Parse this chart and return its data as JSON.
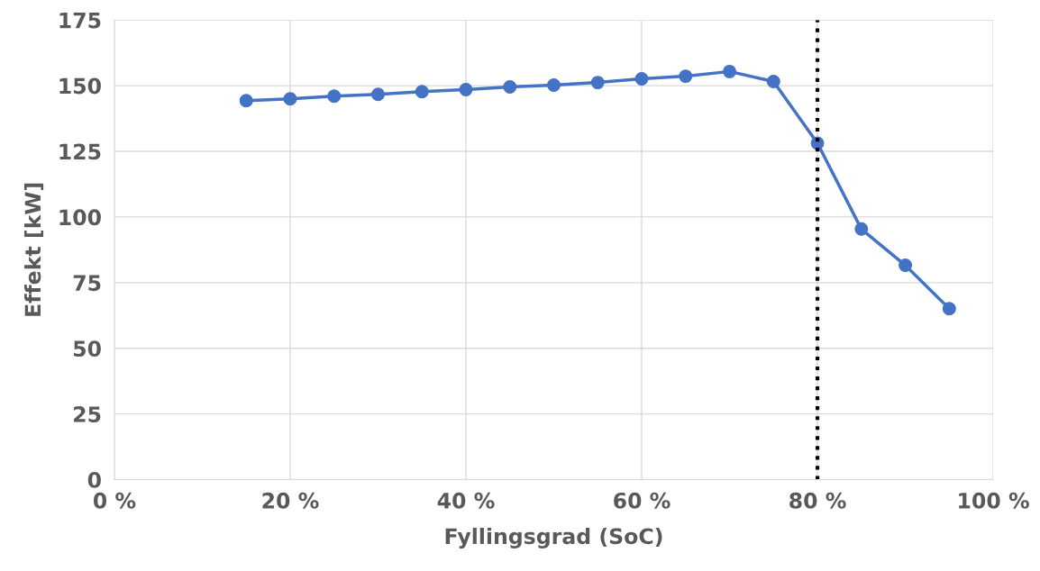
{
  "chart_data": {
    "type": "line",
    "xlabel": "Fyllingsgrad (SoC)",
    "ylabel": "Effekt [kW]",
    "x": [
      15,
      20,
      25,
      30,
      35,
      40,
      45,
      50,
      55,
      60,
      65,
      70,
      75,
      80,
      85,
      90,
      95
    ],
    "series": [
      {
        "color": "#4472c4",
        "values": [
          144.3,
          145.0,
          146.0,
          146.7,
          147.7,
          148.5,
          149.5,
          150.2,
          151.2,
          152.6,
          153.6,
          155.4,
          151.6,
          128.1,
          95.4,
          81.6,
          65.1
        ]
      }
    ],
    "xlim": [
      0,
      100
    ],
    "xticks": [
      {
        "value": 0,
        "label": "0 %"
      },
      {
        "value": 20,
        "label": "20 %"
      },
      {
        "value": 40,
        "label": "40 %"
      },
      {
        "value": 60,
        "label": "60 %"
      },
      {
        "value": 80,
        "label": "80 %"
      },
      {
        "value": 100,
        "label": "100 %"
      }
    ],
    "ylim": [
      0,
      175
    ],
    "yticks": [
      0,
      25,
      50,
      75,
      100,
      125,
      150,
      175
    ],
    "grid": true,
    "marker": "circle",
    "line_style": "solid",
    "ref_lines": [
      {
        "axis": "x",
        "value": 80,
        "color": "#000000",
        "line_style": "dotted"
      }
    ]
  }
}
